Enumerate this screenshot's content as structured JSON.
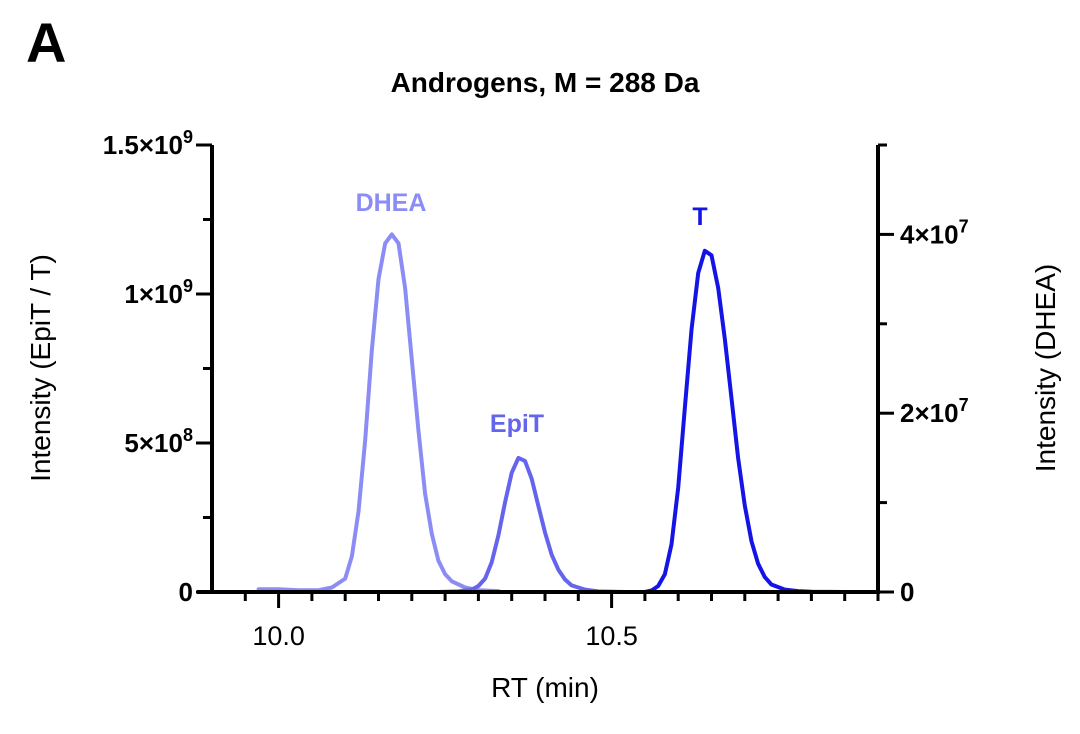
{
  "chart_data": {
    "type": "line",
    "panel_label": "A",
    "title": "Androgens, M = 288 Da",
    "xlabel": "RT (min)",
    "ylabel_left": "Intensity (EpiT / T)",
    "ylabel_right": "Intensity (DHEA)",
    "xlim": [
      9.9,
      10.9
    ],
    "ylim_left": [
      0,
      1500000000
    ],
    "ylim_right": [
      0,
      50000000
    ],
    "x_ticks": [
      {
        "value": 10.0,
        "label": "10.0"
      },
      {
        "value": 10.5,
        "label": "10.5"
      }
    ],
    "y_ticks_left": [
      {
        "value": 0,
        "base": "0",
        "exp": ""
      },
      {
        "value": 500000000,
        "base": "5×10",
        "exp": "8"
      },
      {
        "value": 1000000000,
        "base": "1×10",
        "exp": "9"
      },
      {
        "value": 1500000000,
        "base": "1.5×10",
        "exp": "9"
      }
    ],
    "y_ticks_right": [
      {
        "value": 0,
        "base": "0",
        "exp": ""
      },
      {
        "value": 20000000,
        "base": "2×10",
        "exp": "7"
      },
      {
        "value": 40000000,
        "base": "4×10",
        "exp": "7"
      }
    ],
    "series": [
      {
        "name": "DHEA",
        "axis": "right",
        "color": "#8c8cf5",
        "x": [
          9.97,
          10.0,
          10.03,
          10.06,
          10.08,
          10.1,
          10.11,
          10.12,
          10.13,
          10.14,
          10.15,
          10.16,
          10.17,
          10.18,
          10.19,
          10.2,
          10.21,
          10.22,
          10.23,
          10.24,
          10.25,
          10.26,
          10.28,
          10.3,
          10.33
        ],
        "y": [
          300000,
          300000,
          200000,
          200000,
          500000,
          1500000,
          4000000,
          9000000,
          17000000,
          27000000,
          35000000,
          39000000,
          40000000,
          39000000,
          34000000,
          26000000,
          18000000,
          11000000,
          6500000,
          3500000,
          2000000,
          1200000,
          500000,
          200000,
          100000
        ]
      },
      {
        "name": "EpiT",
        "axis": "left",
        "color": "#6464ec",
        "x": [
          10.2,
          10.24,
          10.27,
          10.29,
          10.3,
          10.31,
          10.32,
          10.33,
          10.34,
          10.35,
          10.36,
          10.37,
          10.38,
          10.39,
          10.4,
          10.41,
          10.42,
          10.43,
          10.44,
          10.46,
          10.48,
          10.52
        ],
        "y": [
          0,
          0,
          2000000,
          8000000,
          20000000,
          45000000,
          100000000,
          190000000,
          300000000,
          400000000,
          450000000,
          440000000,
          380000000,
          290000000,
          200000000,
          125000000,
          75000000,
          42000000,
          22000000,
          8000000,
          2000000,
          0
        ]
      },
      {
        "name": "T",
        "axis": "left",
        "color": "#1414e6",
        "x": [
          10.52,
          10.55,
          10.56,
          10.57,
          10.58,
          10.59,
          10.6,
          10.61,
          10.62,
          10.63,
          10.64,
          10.65,
          10.66,
          10.67,
          10.68,
          10.69,
          10.7,
          10.71,
          10.72,
          10.73,
          10.74,
          10.76,
          10.78,
          10.8,
          10.85,
          10.9
        ],
        "y": [
          0,
          0,
          5000000,
          20000000,
          60000000,
          160000000,
          350000000,
          620000000,
          880000000,
          1070000000,
          1145000000,
          1130000000,
          1020000000,
          850000000,
          650000000,
          450000000,
          290000000,
          170000000,
          95000000,
          50000000,
          25000000,
          8000000,
          3000000,
          1000000,
          0,
          0
        ]
      }
    ],
    "annotations": [
      {
        "text": "DHEA",
        "color": "#8c8cf5"
      },
      {
        "text": "EpiT",
        "color": "#6464ec"
      },
      {
        "text": "T",
        "color": "#1414e6"
      }
    ]
  }
}
